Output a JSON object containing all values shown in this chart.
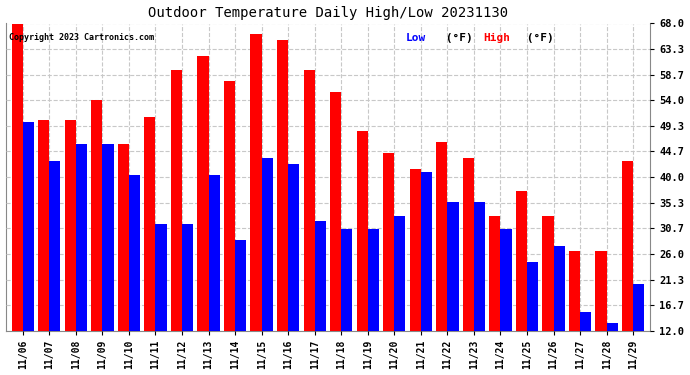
{
  "title": "Outdoor Temperature Daily High/Low 20231130",
  "copyright": "Copyright 2023 Cartronics.com",
  "legend_low": "Low (°F)",
  "legend_high": "High (°F)",
  "dates": [
    "11/06",
    "11/07",
    "11/08",
    "11/09",
    "11/10",
    "11/11",
    "11/12",
    "11/13",
    "11/14",
    "11/15",
    "11/16",
    "11/17",
    "11/18",
    "11/19",
    "11/20",
    "11/21",
    "11/22",
    "11/23",
    "11/24",
    "11/25",
    "11/26",
    "11/27",
    "11/28",
    "11/29"
  ],
  "highs": [
    68.0,
    50.5,
    50.5,
    54.0,
    46.0,
    51.0,
    59.5,
    62.0,
    57.5,
    66.0,
    65.0,
    59.5,
    55.5,
    48.5,
    44.5,
    41.5,
    46.5,
    43.5,
    33.0,
    37.5,
    33.0,
    26.5,
    26.5,
    43.0
  ],
  "lows": [
    50.0,
    43.0,
    46.0,
    46.0,
    40.5,
    31.5,
    31.5,
    40.5,
    28.5,
    43.5,
    42.5,
    32.0,
    30.5,
    30.5,
    33.0,
    41.0,
    35.5,
    35.5,
    30.5,
    24.5,
    27.5,
    15.5,
    13.5,
    20.5
  ],
  "high_color": "#ff0000",
  "low_color": "#0000ff",
  "bg_color": "#ffffff",
  "grid_color": "#c8c8c8",
  "yticks": [
    12.0,
    16.7,
    21.3,
    26.0,
    30.7,
    35.3,
    40.0,
    44.7,
    49.3,
    54.0,
    58.7,
    63.3,
    68.0
  ],
  "ymin": 12.0,
  "ymax": 68.0,
  "bar_bottom": 12.0
}
